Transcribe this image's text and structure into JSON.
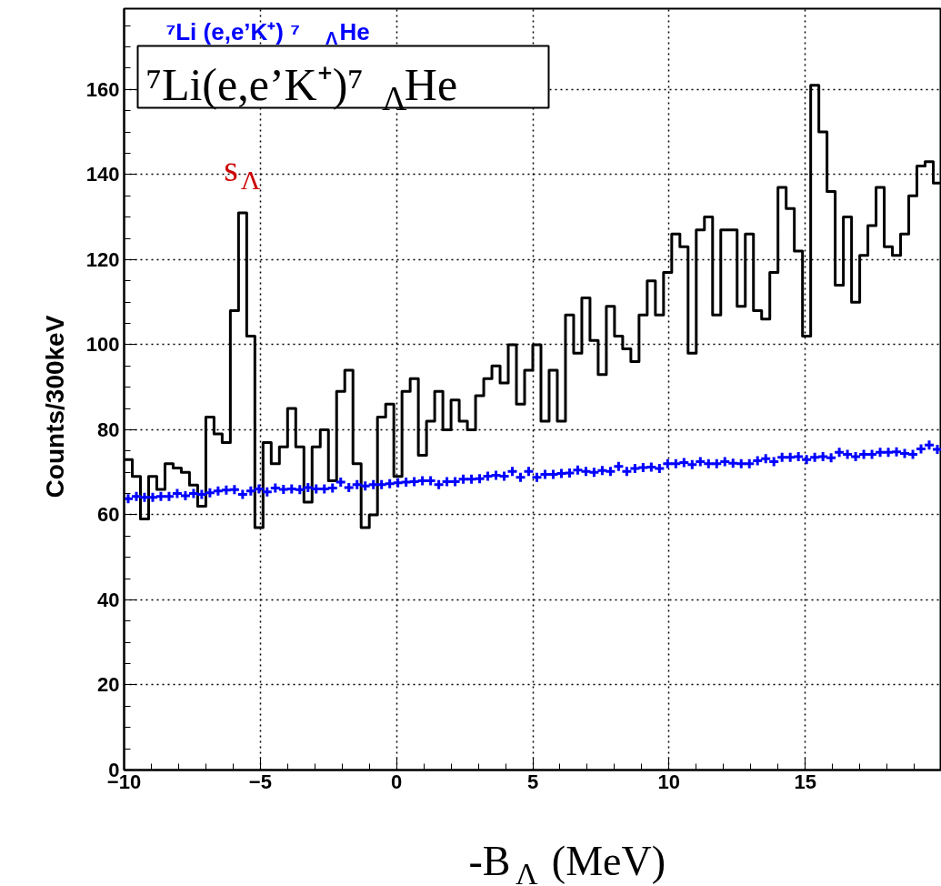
{
  "chart_data": {
    "type": "histogram",
    "title": "⁷Li(e,e’K⁺)⁷$_{Λ}$He",
    "subtitle": "⁷Li (e,e’K⁺) ⁷$_{Λ}$He",
    "xlabel": "-B$_{Λ}$ (MeV)",
    "ylabel": "Counts/300keV",
    "annotations": [
      "s$_{Λ}$"
    ],
    "bins": [
      -10,
      -9.7,
      -9.4,
      -9.1,
      -8.8,
      -8.5,
      -8.2,
      -7.9,
      -7.6,
      -7.3,
      -7,
      -6.7,
      -6.4,
      -6.1,
      -5.8,
      -5.5,
      -5.2,
      -4.9,
      -4.6,
      -4.3,
      -4,
      -3.7,
      -3.4,
      -3.1,
      -2.8,
      -2.5,
      -2.2,
      -1.9,
      -1.6,
      -1.3,
      -1,
      -0.7,
      -0.4,
      -0.1,
      0.2,
      0.5,
      0.8,
      1.1,
      1.4,
      1.7,
      2,
      2.3,
      2.6,
      2.9,
      3.2,
      3.5,
      3.8,
      4.1,
      4.4,
      4.7,
      5,
      5.3,
      5.6,
      5.9,
      6.2,
      6.5,
      6.8,
      7.1,
      7.4,
      7.7,
      8,
      8.3,
      8.6,
      8.9,
      9.2,
      9.5,
      9.8,
      10.1,
      10.4,
      10.7,
      11,
      11.3,
      11.6,
      11.9,
      12.2,
      12.5,
      12.8,
      13.1,
      13.4,
      13.7,
      14,
      14.3,
      14.6,
      14.9,
      15.2,
      15.5,
      15.8,
      16.1,
      16.4,
      16.7,
      17,
      17.3,
      17.6,
      17.9,
      18.2,
      18.5,
      18.8,
      19.1,
      19.4,
      19.7,
      20
    ],
    "series": [
      {
        "color": "#000000",
        "values": [
          73,
          69,
          59,
          69,
          66,
          72,
          71,
          70,
          67,
          62,
          83,
          79,
          77,
          108,
          131,
          102,
          57,
          77,
          72,
          76,
          85,
          76,
          63,
          76,
          80,
          68,
          89,
          94,
          72,
          57,
          60,
          83,
          86,
          69,
          89,
          92,
          74,
          82,
          89,
          80,
          87,
          82,
          80,
          88,
          92,
          95,
          91,
          100,
          86,
          94,
          100,
          82,
          94,
          82,
          107,
          98,
          111,
          101,
          93,
          109,
          102,
          99,
          96,
          107,
          115,
          107,
          117,
          126,
          123,
          98,
          127,
          130,
          107,
          127,
          127,
          109,
          126,
          108,
          106,
          117,
          137,
          132,
          122,
          102,
          161,
          150,
          136,
          114,
          130,
          110,
          121,
          128,
          137,
          123,
          121,
          126,
          135,
          142,
          143,
          138
        ]
      },
      {
        "type": "scatter",
        "color": "#0000ff",
        "marker": "cross",
        "x": [
          -9.85,
          -9.55,
          -9.25,
          -8.95,
          -8.65,
          -8.35,
          -8.05,
          -7.75,
          -7.45,
          -7.15,
          -6.85,
          -6.55,
          -6.25,
          -5.95,
          -5.65,
          -5.35,
          -5.05,
          -4.75,
          -4.45,
          -4.15,
          -3.85,
          -3.55,
          -3.25,
          -2.95,
          -2.65,
          -2.35,
          -2.05,
          -1.75,
          -1.45,
          -1.15,
          -0.85,
          -0.55,
          -0.25,
          0.05,
          0.35,
          0.65,
          0.95,
          1.25,
          1.55,
          1.85,
          2.15,
          2.45,
          2.75,
          3.05,
          3.35,
          3.65,
          3.95,
          4.25,
          4.55,
          4.85,
          5.15,
          5.45,
          5.75,
          6.05,
          6.35,
          6.65,
          6.95,
          7.25,
          7.55,
          7.85,
          8.15,
          8.45,
          8.75,
          9.05,
          9.35,
          9.65,
          9.95,
          10.25,
          10.55,
          10.85,
          11.15,
          11.45,
          11.75,
          12.05,
          12.35,
          12.65,
          12.95,
          13.25,
          13.55,
          13.85,
          14.15,
          14.45,
          14.75,
          15.05,
          15.35,
          15.65,
          15.95,
          16.25,
          16.55,
          16.85,
          17.15,
          17.45,
          17.75,
          18.05,
          18.35,
          18.65,
          18.95,
          19.25,
          19.55,
          19.85
        ],
        "values": [
          63.8,
          64.3,
          64.1,
          64.1,
          64.3,
          64.3,
          65.0,
          64.5,
          65.0,
          64.8,
          65.2,
          65.6,
          65.8,
          65.9,
          64.8,
          65.6,
          66.1,
          65.4,
          66.3,
          66.0,
          66.1,
          65.9,
          66.4,
          66.1,
          66.1,
          66.3,
          67.7,
          66.4,
          67.1,
          66.8,
          67.1,
          67.1,
          67.3,
          67.5,
          67.7,
          67.8,
          68.0,
          68.0,
          67.1,
          67.8,
          67.8,
          68.4,
          68.4,
          68.5,
          69.1,
          69.3,
          69.1,
          70.2,
          68.8,
          70.2,
          68.8,
          69.5,
          69.5,
          69.7,
          69.8,
          70.5,
          70.2,
          70.0,
          70.4,
          70.2,
          71.4,
          70.2,
          70.9,
          71.1,
          71.2,
          70.9,
          72.0,
          72.0,
          72.3,
          71.8,
          72.5,
          72.0,
          72.0,
          72.5,
          72.1,
          72.0,
          72.0,
          72.7,
          73.2,
          72.5,
          73.5,
          73.5,
          73.7,
          73.0,
          73.5,
          73.7,
          73.4,
          74.7,
          74.2,
          73.7,
          74.2,
          74.2,
          74.7,
          74.7,
          74.8,
          74.4,
          74.2,
          75.5,
          76.4,
          75.4
        ]
      }
    ],
    "xlim": [
      -10,
      20
    ],
    "ylim": [
      0,
      179
    ],
    "xticks": [
      -10,
      -5,
      0,
      5,
      10,
      15
    ],
    "yticks": [
      0,
      20,
      40,
      60,
      80,
      100,
      120,
      140,
      160
    ],
    "grid": true
  }
}
